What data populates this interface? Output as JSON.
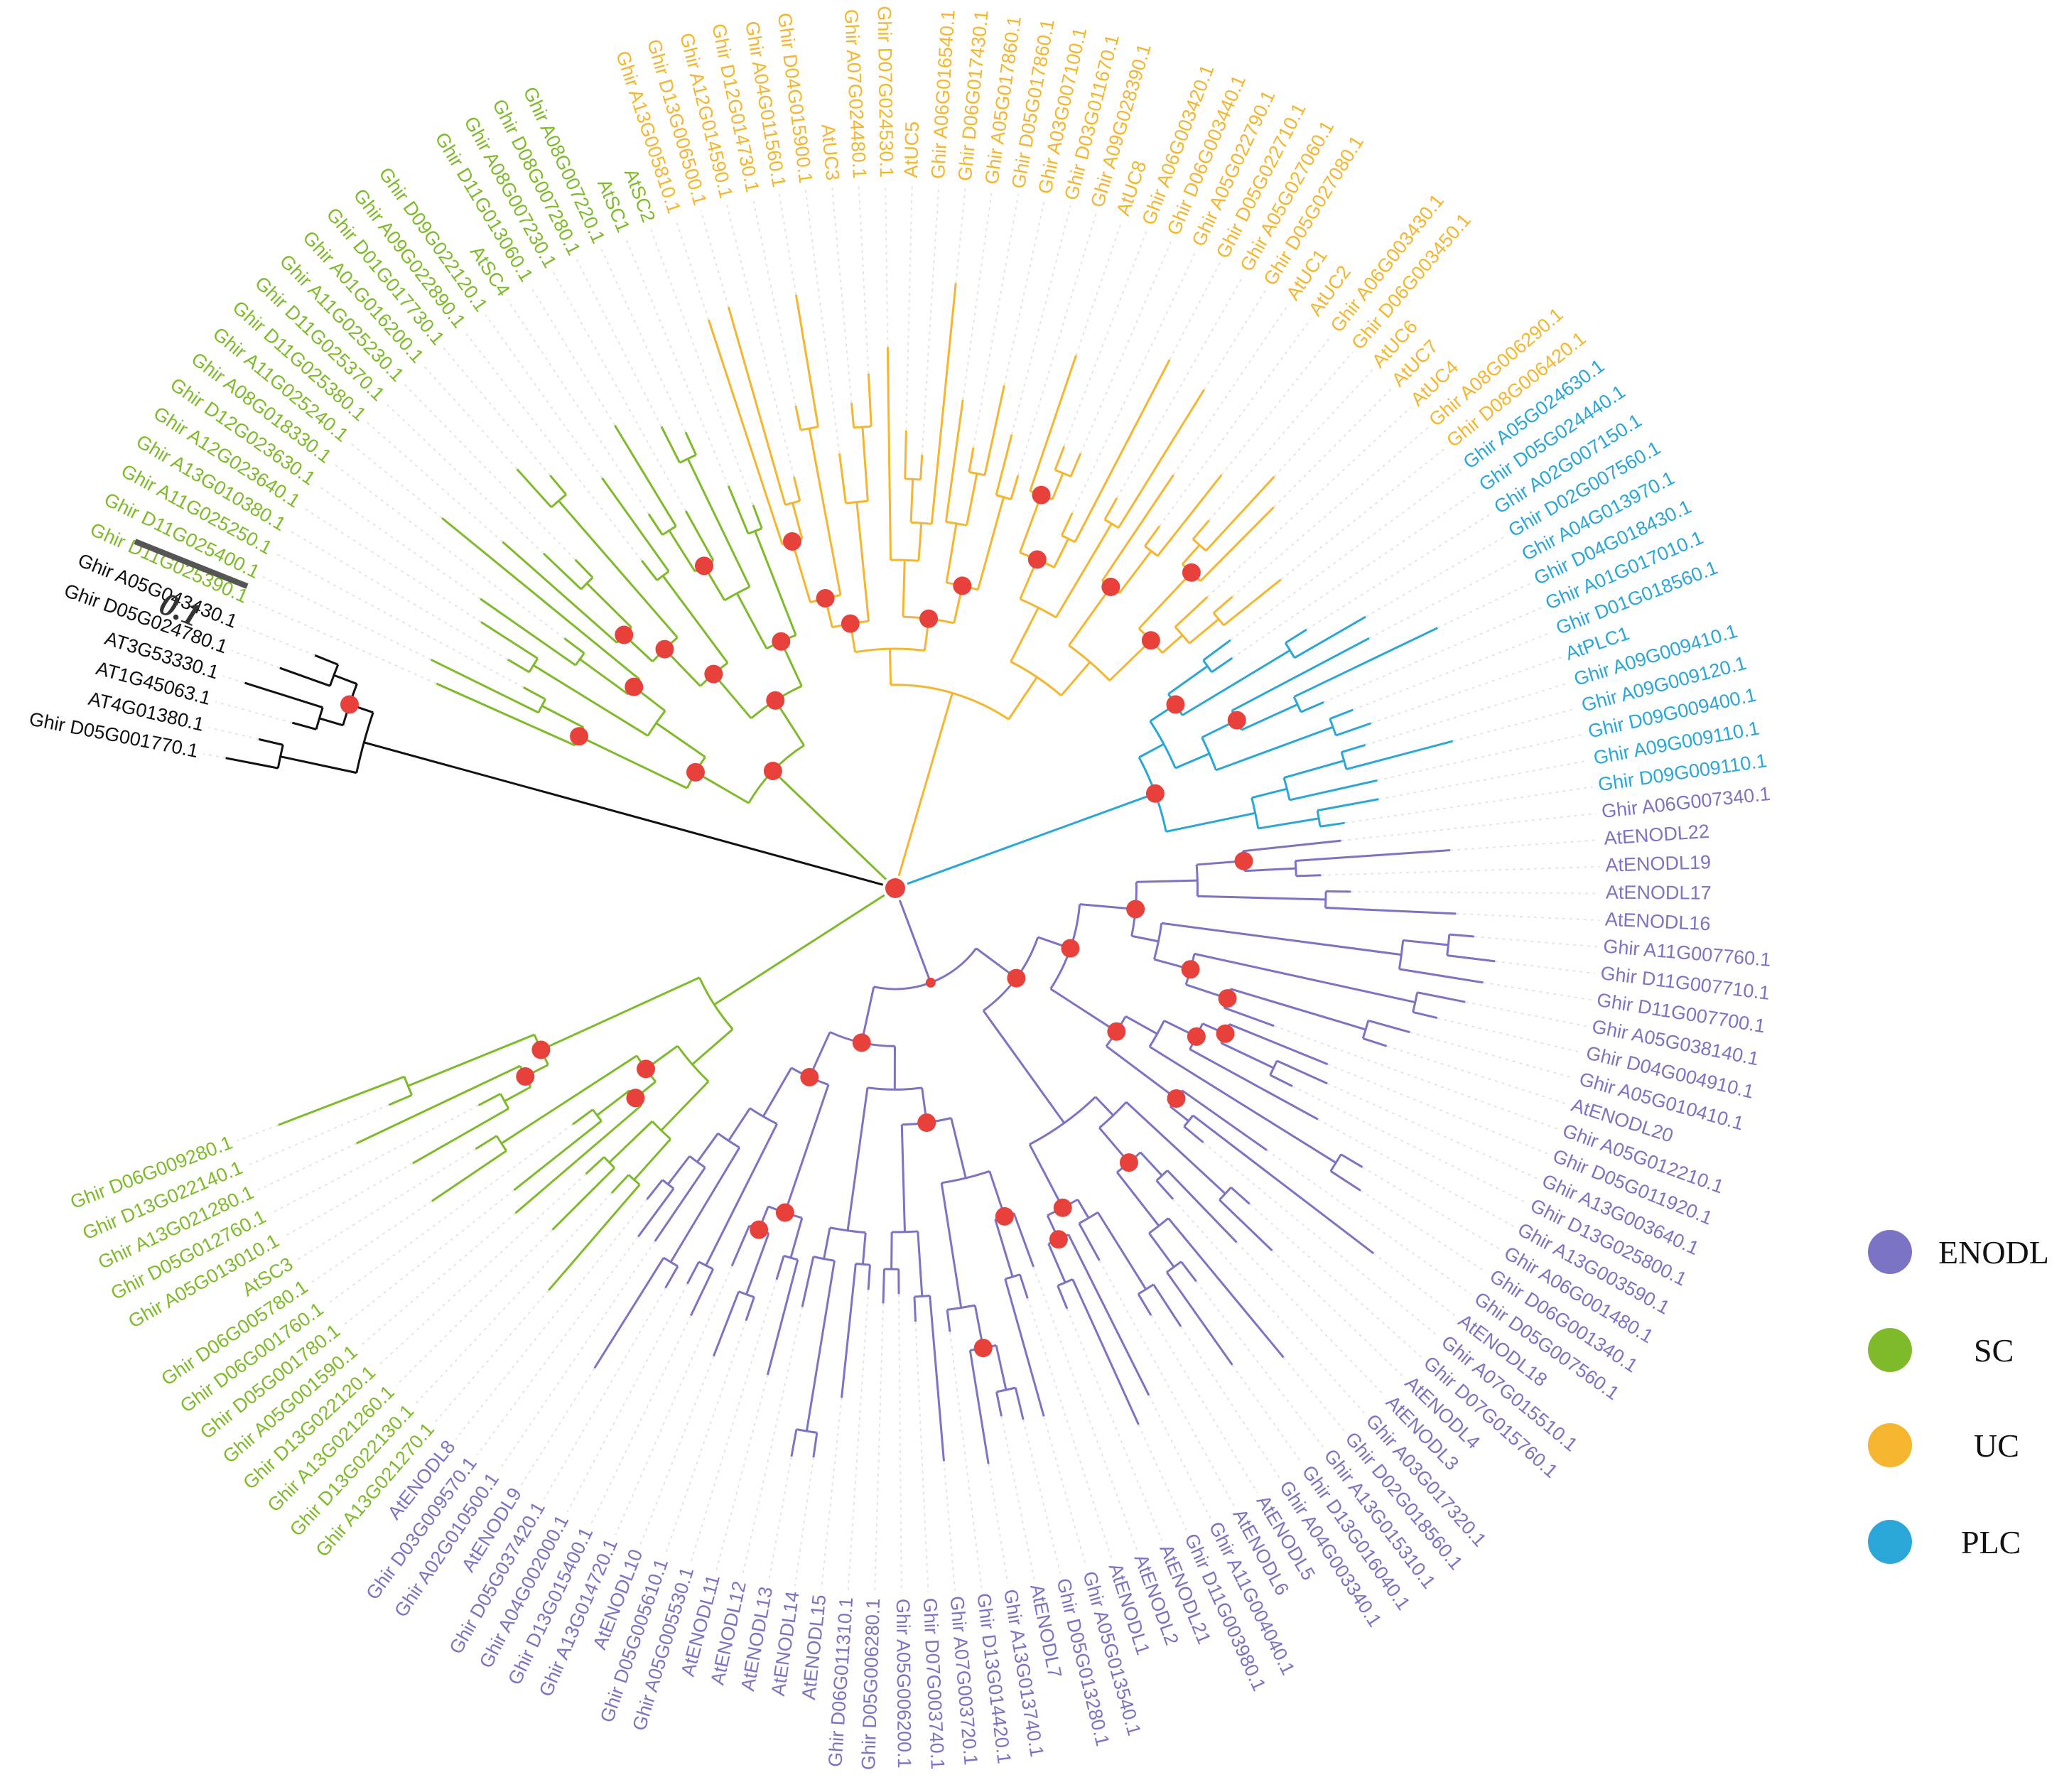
{
  "figure": {
    "scale_bar": {
      "label": "0.1",
      "value": 0.1
    }
  },
  "colors": {
    "ENODL": "#7b73c3",
    "SC": "#7fba2a",
    "UC": "#f5b52e",
    "PLC": "#2aa6d9",
    "outgroup": "#111111",
    "node": "#e8413b"
  },
  "legend": [
    {
      "key": "ENODL",
      "label": "ENODL"
    },
    {
      "key": "SC",
      "label": "SC"
    },
    {
      "key": "UC",
      "label": "UC"
    },
    {
      "key": "PLC",
      "label": "PLC"
    }
  ],
  "leaves": [
    {
      "name": "Ghir D05G001770.1",
      "group": "outgroup"
    },
    {
      "name": "AT4G01380.1",
      "group": "outgroup"
    },
    {
      "name": "AT1G45063.1",
      "group": "outgroup"
    },
    {
      "name": "AT3G53330.1",
      "group": "outgroup"
    },
    {
      "name": "Ghir D05G024780.1",
      "group": "outgroup"
    },
    {
      "name": "Ghir A05G043430.1",
      "group": "outgroup"
    },
    {
      "name": "Ghir D11G025390.1",
      "group": "SC"
    },
    {
      "name": "Ghir D11G025400.1",
      "group": "SC"
    },
    {
      "name": "Ghir A11G025250.1",
      "group": "SC"
    },
    {
      "name": "Ghir A13G010380.1",
      "group": "SC"
    },
    {
      "name": "Ghir A12G023640.1",
      "group": "SC"
    },
    {
      "name": "Ghir D12G023630.1",
      "group": "SC"
    },
    {
      "name": "Ghir A08G018330.1",
      "group": "SC"
    },
    {
      "name": "Ghir A11G025240.1",
      "group": "SC"
    },
    {
      "name": "Ghir D11G025380.1",
      "group": "SC"
    },
    {
      "name": "Ghir D11G025370.1",
      "group": "SC"
    },
    {
      "name": "Ghir A11G025230.1",
      "group": "SC"
    },
    {
      "name": "Ghir A01G016200.1",
      "group": "SC"
    },
    {
      "name": "Ghir D01G017730.1",
      "group": "SC"
    },
    {
      "name": "Ghir A09G022890.1",
      "group": "SC"
    },
    {
      "name": "Ghir D09G022120.1",
      "group": "SC"
    },
    {
      "name": "AtSC4",
      "group": "SC"
    },
    {
      "name": "Ghir D11G013060.1",
      "group": "SC"
    },
    {
      "name": "Ghir A08G007230.1",
      "group": "SC"
    },
    {
      "name": "Ghir D08G007280.1",
      "group": "SC"
    },
    {
      "name": "Ghir A08G007220.1",
      "group": "SC"
    },
    {
      "name": "AtSC1",
      "group": "SC"
    },
    {
      "name": "AtSC2",
      "group": "SC"
    },
    {
      "name": "Ghir A13G005810.1",
      "group": "UC"
    },
    {
      "name": "Ghir D13G006500.1",
      "group": "UC"
    },
    {
      "name": "Ghir A12G014590.1",
      "group": "UC"
    },
    {
      "name": "Ghir D12G014730.1",
      "group": "UC"
    },
    {
      "name": "Ghir A04G011560.1",
      "group": "UC"
    },
    {
      "name": "Ghir D04G015900.1",
      "group": "UC"
    },
    {
      "name": "AtUC3",
      "group": "UC"
    },
    {
      "name": "Ghir A07G024480.1",
      "group": "UC"
    },
    {
      "name": "Ghir D07G024530.1",
      "group": "UC"
    },
    {
      "name": "AtUC5",
      "group": "UC"
    },
    {
      "name": "Ghir A06G016540.1",
      "group": "UC"
    },
    {
      "name": "Ghir D06G017430.1",
      "group": "UC"
    },
    {
      "name": "Ghir A05G017860.1",
      "group": "UC"
    },
    {
      "name": "Ghir D05G017860.1",
      "group": "UC"
    },
    {
      "name": "Ghir A03G007100.1",
      "group": "UC"
    },
    {
      "name": "Ghir D03G011670.1",
      "group": "UC"
    },
    {
      "name": "Ghir A09G028390.1",
      "group": "UC"
    },
    {
      "name": "AtUC8",
      "group": "UC"
    },
    {
      "name": "Ghir A06G003420.1",
      "group": "UC"
    },
    {
      "name": "Ghir D06G003440.1",
      "group": "UC"
    },
    {
      "name": "Ghir A05G022790.1",
      "group": "UC"
    },
    {
      "name": "Ghir D05G022710.1",
      "group": "UC"
    },
    {
      "name": "Ghir A05G027060.1",
      "group": "UC"
    },
    {
      "name": "Ghir D05G027080.1",
      "group": "UC"
    },
    {
      "name": "AtUC1",
      "group": "UC"
    },
    {
      "name": "AtUC2",
      "group": "UC"
    },
    {
      "name": "Ghir A06G003430.1",
      "group": "UC"
    },
    {
      "name": "Ghir D06G003450.1",
      "group": "UC"
    },
    {
      "name": "AtUC6",
      "group": "UC"
    },
    {
      "name": "AtUC7",
      "group": "UC"
    },
    {
      "name": "AtUC4",
      "group": "UC"
    },
    {
      "name": "Ghir A08G006290.1",
      "group": "UC"
    },
    {
      "name": "Ghir D08G006420.1",
      "group": "UC"
    },
    {
      "name": "Ghir A05G024630.1",
      "group": "PLC"
    },
    {
      "name": "Ghir D05G024440.1",
      "group": "PLC"
    },
    {
      "name": "Ghir A02G007150.1",
      "group": "PLC"
    },
    {
      "name": "Ghir D02G007560.1",
      "group": "PLC"
    },
    {
      "name": "Ghir A04G013970.1",
      "group": "PLC"
    },
    {
      "name": "Ghir D04G018430.1",
      "group": "PLC"
    },
    {
      "name": "Ghir A01G017010.1",
      "group": "PLC"
    },
    {
      "name": "Ghir D01G018560.1",
      "group": "PLC"
    },
    {
      "name": "AtPLC1",
      "group": "PLC"
    },
    {
      "name": "Ghir A09G009410.1",
      "group": "PLC"
    },
    {
      "name": "Ghir A09G009120.1",
      "group": "PLC"
    },
    {
      "name": "Ghir D09G009400.1",
      "group": "PLC"
    },
    {
      "name": "Ghir A09G009110.1",
      "group": "PLC"
    },
    {
      "name": "Ghir D09G009110.1",
      "group": "PLC"
    },
    {
      "name": "Ghir A06G007340.1",
      "group": "ENODL"
    },
    {
      "name": "AtENODL22",
      "group": "ENODL"
    },
    {
      "name": "AtENODL19",
      "group": "ENODL"
    },
    {
      "name": "AtENODL17",
      "group": "ENODL"
    },
    {
      "name": "AtENODL16",
      "group": "ENODL"
    },
    {
      "name": "Ghir A11G007760.1",
      "group": "ENODL"
    },
    {
      "name": "Ghir D11G007710.1",
      "group": "ENODL"
    },
    {
      "name": "Ghir D11G007700.1",
      "group": "ENODL"
    },
    {
      "name": "Ghir A05G038140.1",
      "group": "ENODL"
    },
    {
      "name": "Ghir D04G004910.1",
      "group": "ENODL"
    },
    {
      "name": "Ghir A05G010410.1",
      "group": "ENODL"
    },
    {
      "name": "AtENODL20",
      "group": "ENODL"
    },
    {
      "name": "Ghir A05G012210.1",
      "group": "ENODL"
    },
    {
      "name": "Ghir D05G011920.1",
      "group": "ENODL"
    },
    {
      "name": "Ghir A13G003640.1",
      "group": "ENODL"
    },
    {
      "name": "Ghir D13G025800.1",
      "group": "ENODL"
    },
    {
      "name": "Ghir A13G003590.1",
      "group": "ENODL"
    },
    {
      "name": "Ghir A06G001480.1",
      "group": "ENODL"
    },
    {
      "name": "Ghir D06G001340.1",
      "group": "ENODL"
    },
    {
      "name": "Ghir D05G007560.1",
      "group": "ENODL"
    },
    {
      "name": "AtENODL18",
      "group": "ENODL"
    },
    {
      "name": "Ghir A07G015510.1",
      "group": "ENODL"
    },
    {
      "name": "Ghir D07G015760.1",
      "group": "ENODL"
    },
    {
      "name": "AtENODL4",
      "group": "ENODL"
    },
    {
      "name": "AtENODL3",
      "group": "ENODL"
    },
    {
      "name": "Ghir A03G017320.1",
      "group": "ENODL"
    },
    {
      "name": "Ghir D02G018560.1",
      "group": "ENODL"
    },
    {
      "name": "Ghir A13G015310.1",
      "group": "ENODL"
    },
    {
      "name": "Ghir D13G016040.1",
      "group": "ENODL"
    },
    {
      "name": "Ghir A04G003340.1",
      "group": "ENODL"
    },
    {
      "name": "AtENODL5",
      "group": "ENODL"
    },
    {
      "name": "AtENODL6",
      "group": "ENODL"
    },
    {
      "name": "Ghir A11G004040.1",
      "group": "ENODL"
    },
    {
      "name": "Ghir D11G003980.1",
      "group": "ENODL"
    },
    {
      "name": "AtENODL21",
      "group": "ENODL"
    },
    {
      "name": "AtENODL2",
      "group": "ENODL"
    },
    {
      "name": "AtENODL1",
      "group": "ENODL"
    },
    {
      "name": "Ghir A05G013540.1",
      "group": "ENODL"
    },
    {
      "name": "Ghir D05G013280.1",
      "group": "ENODL"
    },
    {
      "name": "AtENODL7",
      "group": "ENODL"
    },
    {
      "name": "Ghir A13G013740.1",
      "group": "ENODL"
    },
    {
      "name": "Ghir D13G014420.1",
      "group": "ENODL"
    },
    {
      "name": "Ghir A07G003720.1",
      "group": "ENODL"
    },
    {
      "name": "Ghir D07G003740.1",
      "group": "ENODL"
    },
    {
      "name": "Ghir A05G006200.1",
      "group": "ENODL"
    },
    {
      "name": "Ghir D05G006280.1",
      "group": "ENODL"
    },
    {
      "name": "Ghir D06G011310.1",
      "group": "ENODL"
    },
    {
      "name": "AtENODL15",
      "group": "ENODL"
    },
    {
      "name": "AtENODL14",
      "group": "ENODL"
    },
    {
      "name": "AtENODL13",
      "group": "ENODL"
    },
    {
      "name": "AtENODL12",
      "group": "ENODL"
    },
    {
      "name": "AtENODL11",
      "group": "ENODL"
    },
    {
      "name": "Ghir A05G005530.1",
      "group": "ENODL"
    },
    {
      "name": "Ghir D05G005610.1",
      "group": "ENODL"
    },
    {
      "name": "AtENODL10",
      "group": "ENODL"
    },
    {
      "name": "Ghir A13G014720.1",
      "group": "ENODL"
    },
    {
      "name": "Ghir D13G015400.1",
      "group": "ENODL"
    },
    {
      "name": "Ghir A04G002000.1",
      "group": "ENODL"
    },
    {
      "name": "Ghir D05G037420.1",
      "group": "ENODL"
    },
    {
      "name": "AtENODL9",
      "group": "ENODL"
    },
    {
      "name": "Ghir A02G010500.1",
      "group": "ENODL"
    },
    {
      "name": "Ghir D03G009570.1",
      "group": "ENODL"
    },
    {
      "name": "AtENODL8",
      "group": "ENODL"
    },
    {
      "name": "Ghir A13G021270.1",
      "group": "SC"
    },
    {
      "name": "Ghir D13G022130.1",
      "group": "SC"
    },
    {
      "name": "Ghir A13G021260.1",
      "group": "SC"
    },
    {
      "name": "Ghir D13G022120.1",
      "group": "SC"
    },
    {
      "name": "Ghir A05G001590.1",
      "group": "SC"
    },
    {
      "name": "Ghir D05G001780.1",
      "group": "SC"
    },
    {
      "name": "Ghir D06G001760.1",
      "group": "SC"
    },
    {
      "name": "Ghir D06G005780.1",
      "group": "SC"
    },
    {
      "name": "AtSC3",
      "group": "SC"
    },
    {
      "name": "Ghir A05G013010.1",
      "group": "SC"
    },
    {
      "name": "Ghir D05G012760.1",
      "group": "SC"
    },
    {
      "name": "Ghir A13G021280.1",
      "group": "SC"
    },
    {
      "name": "Ghir D13G022140.1",
      "group": "SC"
    },
    {
      "name": "Ghir D06G009280.1",
      "group": "SC"
    }
  ]
}
